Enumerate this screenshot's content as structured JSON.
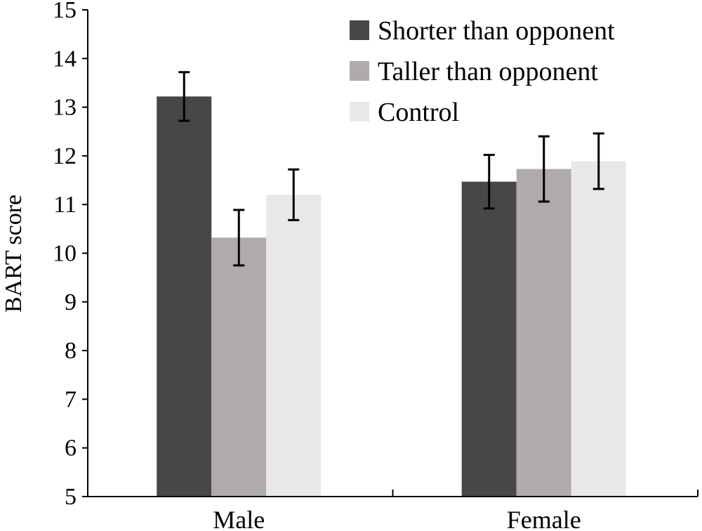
{
  "chart_data": {
    "type": "bar",
    "title": "",
    "xlabel": "",
    "ylabel": "BART score",
    "ylim": [
      5,
      15
    ],
    "yticks": [
      5,
      6,
      7,
      8,
      9,
      10,
      11,
      12,
      13,
      14,
      15
    ],
    "categories": [
      "Male",
      "Female"
    ],
    "legend_position": "top-right",
    "grid": false,
    "series": [
      {
        "name": "Shorter than opponent",
        "color": "#474747",
        "values": [
          13.22,
          11.47
        ],
        "errors": [
          0.5,
          0.55
        ]
      },
      {
        "name": "Taller than opponent",
        "color": "#aeaaad",
        "values": [
          10.32,
          11.73
        ],
        "errors": [
          0.57,
          0.67
        ]
      },
      {
        "name": "Control",
        "color": "#e8e8e8",
        "values": [
          11.2,
          11.89
        ],
        "errors": [
          0.52,
          0.57
        ]
      }
    ]
  }
}
